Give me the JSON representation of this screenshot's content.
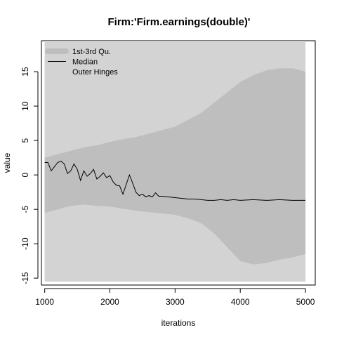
{
  "chart_data": {
    "type": "area",
    "title": "Firm:'Firm.earnings(double)'",
    "xlabel": "iterations",
    "ylabel": "value",
    "xlim": [
      950,
      5150
    ],
    "ylim": [
      -16,
      19.5
    ],
    "xticks": [
      1000,
      2000,
      3000,
      4000,
      5000
    ],
    "yticks": [
      -15,
      -10,
      -5,
      0,
      5,
      10,
      15
    ],
    "grid": false,
    "legend_position": "top-left",
    "colors": {
      "outer": "#d3d3d3",
      "quartile": "#bebebe",
      "median": "#000000"
    },
    "legend": [
      {
        "label": "1st-3rd Qu.",
        "kind": "quartile"
      },
      {
        "label": "Median",
        "kind": "median"
      },
      {
        "label": "Outer Hinges",
        "kind": "outer"
      }
    ],
    "series": [
      {
        "name": "Outer Hinges",
        "x": [
          1000,
          5000
        ],
        "lower": [
          -15.5,
          -15.5
        ],
        "upper": [
          19.3,
          19.3
        ]
      },
      {
        "name": "1st-3rd Qu.",
        "x": [
          1000,
          1200,
          1400,
          1600,
          1800,
          2000,
          2200,
          2400,
          2600,
          2800,
          3000,
          3200,
          3400,
          3600,
          3800,
          4000,
          4200,
          4400,
          4600,
          4800,
          5000
        ],
        "lower": [
          -5.5,
          -5.0,
          -4.5,
          -4.3,
          -4.5,
          -4.6,
          -4.9,
          -5.2,
          -5.4,
          -5.6,
          -5.8,
          -6.3,
          -7.0,
          -8.5,
          -10.5,
          -12.5,
          -13.0,
          -12.8,
          -12.3,
          -12.0,
          -11.5
        ],
        "upper": [
          2.5,
          3.0,
          3.5,
          4.0,
          4.3,
          4.8,
          5.2,
          5.5,
          6.0,
          6.5,
          7.0,
          8.0,
          9.0,
          10.5,
          12.0,
          13.5,
          14.5,
          15.2,
          15.5,
          15.5,
          15.0
        ]
      },
      {
        "name": "Median",
        "x": [
          1000,
          1050,
          1100,
          1150,
          1200,
          1250,
          1300,
          1350,
          1400,
          1450,
          1500,
          1550,
          1600,
          1650,
          1700,
          1750,
          1800,
          1850,
          1900,
          1950,
          2000,
          2050,
          2100,
          2150,
          2200,
          2250,
          2300,
          2350,
          2400,
          2450,
          2500,
          2550,
          2600,
          2650,
          2700,
          2750,
          2800,
          2900,
          3000,
          3100,
          3200,
          3300,
          3400,
          3500,
          3600,
          3700,
          3800,
          3900,
          4000,
          4200,
          4400,
          4600,
          4800,
          5000
        ],
        "y": [
          1.8,
          1.8,
          0.6,
          1.2,
          1.8,
          2.0,
          1.6,
          0.2,
          0.6,
          1.6,
          0.8,
          -0.8,
          0.6,
          -0.2,
          0.2,
          0.8,
          -0.6,
          -0.2,
          0.3,
          -0.4,
          -0.1,
          -1.0,
          -1.5,
          -1.6,
          -2.8,
          -1.4,
          0.0,
          -1.2,
          -2.5,
          -3.0,
          -2.8,
          -3.2,
          -3.0,
          -3.2,
          -2.6,
          -3.1,
          -3.1,
          -3.2,
          -3.3,
          -3.4,
          -3.5,
          -3.5,
          -3.6,
          -3.7,
          -3.7,
          -3.6,
          -3.7,
          -3.6,
          -3.7,
          -3.6,
          -3.7,
          -3.6,
          -3.7,
          -3.7
        ]
      }
    ]
  }
}
